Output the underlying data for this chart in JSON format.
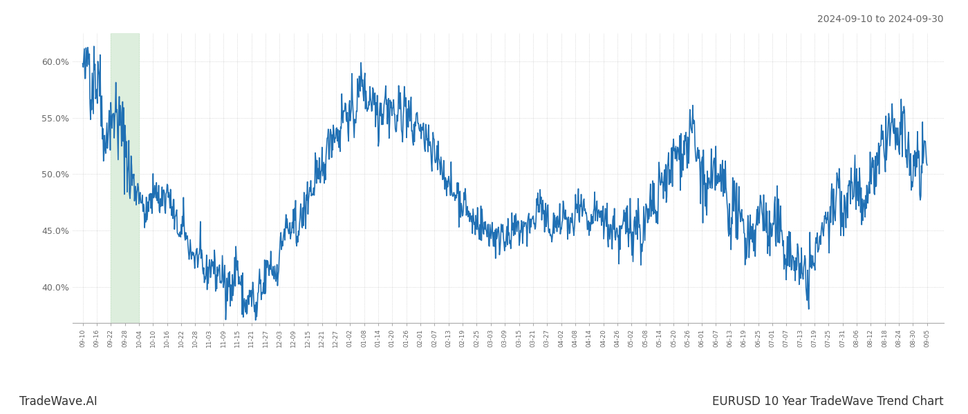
{
  "title_top_right": "2024-09-10 to 2024-09-30",
  "title_bottom_right": "EURUSD 10 Year TradeWave Trend Chart",
  "title_bottom_left": "TradeWave.AI",
  "line_color": "#2070b4",
  "line_width": 1.2,
  "background_color": "#ffffff",
  "grid_color": "#cccccc",
  "highlight_color_fill": "#ddeedd",
  "highlight_color_edge": "#bbddbb",
  "ylim": [
    0.368,
    0.625
  ],
  "yticks": [
    0.4,
    0.45,
    0.5,
    0.55,
    0.6
  ],
  "x_labels": [
    "09-10",
    "09-16",
    "09-22",
    "09-28",
    "10-04",
    "10-10",
    "10-16",
    "10-22",
    "10-28",
    "11-03",
    "11-09",
    "11-15",
    "11-21",
    "11-27",
    "12-03",
    "12-09",
    "12-15",
    "12-21",
    "12-27",
    "01-02",
    "01-08",
    "01-14",
    "01-20",
    "01-26",
    "02-01",
    "02-07",
    "02-13",
    "02-19",
    "02-25",
    "03-03",
    "03-09",
    "03-15",
    "03-21",
    "03-27",
    "04-02",
    "04-08",
    "04-14",
    "04-20",
    "04-26",
    "05-02",
    "05-08",
    "05-14",
    "05-20",
    "05-26",
    "06-01",
    "06-07",
    "06-13",
    "06-19",
    "06-25",
    "07-01",
    "07-07",
    "07-13",
    "07-19",
    "07-25",
    "07-31",
    "08-06",
    "08-12",
    "08-18",
    "08-24",
    "08-30",
    "09-05"
  ],
  "highlight_label_start": "09-22",
  "highlight_label_end": "10-04",
  "keypoints": [
    [
      0,
      0.59
    ],
    [
      1,
      0.595
    ],
    [
      2,
      0.6
    ],
    [
      3,
      0.582
    ],
    [
      4,
      0.572
    ],
    [
      5,
      0.568
    ],
    [
      6,
      0.555
    ],
    [
      7,
      0.55
    ],
    [
      8,
      0.55
    ],
    [
      9,
      0.545
    ],
    [
      10,
      0.558
    ],
    [
      11,
      0.55
    ],
    [
      12,
      0.545
    ],
    [
      13,
      0.542
    ],
    [
      14,
      0.5
    ],
    [
      15,
      0.498
    ],
    [
      16,
      0.5
    ],
    [
      17,
      0.487
    ],
    [
      18,
      0.472
    ],
    [
      19,
      0.462
    ],
    [
      20,
      0.468
    ],
    [
      21,
      0.475
    ],
    [
      22,
      0.48
    ],
    [
      23,
      0.47
    ],
    [
      24,
      0.478
    ],
    [
      25,
      0.472
    ],
    [
      26,
      0.465
    ],
    [
      27,
      0.458
    ],
    [
      28,
      0.455
    ],
    [
      29,
      0.448
    ],
    [
      30,
      0.445
    ],
    [
      31,
      0.44
    ],
    [
      32,
      0.432
    ],
    [
      33,
      0.428
    ],
    [
      34,
      0.42
    ],
    [
      35,
      0.415
    ],
    [
      36,
      0.412
    ],
    [
      37,
      0.408
    ],
    [
      38,
      0.415
    ],
    [
      39,
      0.41
    ],
    [
      40,
      0.415
    ],
    [
      41,
      0.408
    ],
    [
      42,
      0.4
    ],
    [
      43,
      0.395
    ],
    [
      44,
      0.392
    ],
    [
      45,
      0.395
    ],
    [
      46,
      0.415
    ],
    [
      47,
      0.412
    ],
    [
      48,
      0.4
    ],
    [
      49,
      0.392
    ],
    [
      50,
      0.395
    ],
    [
      51,
      0.39
    ],
    [
      52,
      0.392
    ],
    [
      53,
      0.4
    ],
    [
      54,
      0.412
    ],
    [
      55,
      0.42
    ],
    [
      56,
      0.415
    ],
    [
      57,
      0.415
    ],
    [
      58,
      0.425
    ],
    [
      59,
      0.432
    ],
    [
      60,
      0.44
    ],
    [
      61,
      0.445
    ],
    [
      62,
      0.448
    ],
    [
      63,
      0.45
    ],
    [
      64,
      0.452
    ],
    [
      65,
      0.46
    ],
    [
      66,
      0.468
    ],
    [
      67,
      0.475
    ],
    [
      68,
      0.48
    ],
    [
      69,
      0.49
    ],
    [
      70,
      0.498
    ],
    [
      71,
      0.505
    ],
    [
      72,
      0.515
    ],
    [
      73,
      0.52
    ],
    [
      74,
      0.528
    ],
    [
      75,
      0.532
    ],
    [
      76,
      0.535
    ],
    [
      77,
      0.54
    ],
    [
      78,
      0.545
    ],
    [
      79,
      0.548
    ],
    [
      80,
      0.55
    ],
    [
      81,
      0.555
    ],
    [
      82,
      0.56
    ],
    [
      83,
      0.568
    ],
    [
      84,
      0.572
    ],
    [
      85,
      0.575
    ],
    [
      86,
      0.577
    ],
    [
      87,
      0.58
    ],
    [
      88,
      0.565
    ],
    [
      89,
      0.558
    ],
    [
      90,
      0.553
    ],
    [
      91,
      0.558
    ],
    [
      92,
      0.562
    ],
    [
      93,
      0.555
    ],
    [
      94,
      0.556
    ],
    [
      95,
      0.56
    ],
    [
      96,
      0.555
    ],
    [
      97,
      0.545
    ],
    [
      98,
      0.548
    ],
    [
      99,
      0.552
    ],
    [
      100,
      0.548
    ],
    [
      101,
      0.54
    ],
    [
      102,
      0.535
    ],
    [
      103,
      0.53
    ],
    [
      104,
      0.525
    ],
    [
      105,
      0.518
    ],
    [
      106,
      0.51
    ],
    [
      107,
      0.505
    ],
    [
      108,
      0.5
    ],
    [
      109,
      0.495
    ],
    [
      110,
      0.49
    ],
    [
      111,
      0.485
    ],
    [
      112,
      0.48
    ],
    [
      113,
      0.475
    ],
    [
      114,
      0.47
    ],
    [
      115,
      0.465
    ],
    [
      116,
      0.462
    ],
    [
      117,
      0.458
    ],
    [
      118,
      0.455
    ],
    [
      119,
      0.452
    ],
    [
      120,
      0.45
    ],
    [
      121,
      0.448
    ],
    [
      122,
      0.445
    ],
    [
      123,
      0.445
    ],
    [
      124,
      0.445
    ],
    [
      125,
      0.447
    ],
    [
      126,
      0.447
    ],
    [
      127,
      0.445
    ],
    [
      128,
      0.448
    ],
    [
      129,
      0.452
    ],
    [
      130,
      0.456
    ],
    [
      131,
      0.46
    ],
    [
      132,
      0.456
    ],
    [
      133,
      0.452
    ],
    [
      134,
      0.45
    ],
    [
      135,
      0.455
    ],
    [
      136,
      0.458
    ],
    [
      137,
      0.455
    ],
    [
      138,
      0.45
    ],
    [
      139,
      0.448
    ],
    [
      140,
      0.448
    ],
    [
      141,
      0.452
    ],
    [
      142,
      0.455
    ],
    [
      143,
      0.46
    ],
    [
      144,
      0.462
    ],
    [
      145,
      0.46
    ],
    [
      146,
      0.462
    ],
    [
      147,
      0.465
    ],
    [
      148,
      0.468
    ],
    [
      149,
      0.472
    ],
    [
      150,
      0.47
    ],
    [
      151,
      0.468
    ],
    [
      152,
      0.465
    ],
    [
      153,
      0.462
    ],
    [
      154,
      0.46
    ],
    [
      155,
      0.458
    ],
    [
      156,
      0.455
    ],
    [
      157,
      0.452
    ],
    [
      158,
      0.45
    ],
    [
      159,
      0.452
    ],
    [
      160,
      0.45
    ],
    [
      161,
      0.448
    ],
    [
      162,
      0.447
    ],
    [
      163,
      0.445
    ],
    [
      164,
      0.445
    ],
    [
      165,
      0.445
    ],
    [
      166,
      0.448
    ],
    [
      167,
      0.45
    ],
    [
      168,
      0.453
    ],
    [
      169,
      0.46
    ],
    [
      170,
      0.465
    ],
    [
      171,
      0.47
    ],
    [
      172,
      0.475
    ],
    [
      173,
      0.48
    ],
    [
      174,
      0.49
    ],
    [
      175,
      0.5
    ],
    [
      176,
      0.51
    ],
    [
      177,
      0.518
    ],
    [
      178,
      0.525
    ],
    [
      179,
      0.53
    ],
    [
      180,
      0.535
    ],
    [
      181,
      0.528
    ],
    [
      182,
      0.52
    ],
    [
      183,
      0.515
    ],
    [
      184,
      0.51
    ],
    [
      185,
      0.505
    ],
    [
      186,
      0.5
    ],
    [
      187,
      0.495
    ],
    [
      188,
      0.49
    ],
    [
      189,
      0.485
    ],
    [
      190,
      0.48
    ],
    [
      191,
      0.475
    ],
    [
      192,
      0.472
    ],
    [
      193,
      0.47
    ],
    [
      194,
      0.468
    ],
    [
      195,
      0.465
    ],
    [
      196,
      0.462
    ],
    [
      197,
      0.46
    ],
    [
      198,
      0.458
    ],
    [
      199,
      0.455
    ],
    [
      200,
      0.452
    ],
    [
      201,
      0.45
    ],
    [
      202,
      0.448
    ],
    [
      203,
      0.445
    ],
    [
      204,
      0.442
    ],
    [
      205,
      0.44
    ],
    [
      206,
      0.438
    ],
    [
      207,
      0.435
    ],
    [
      208,
      0.432
    ],
    [
      209,
      0.43
    ],
    [
      210,
      0.428
    ],
    [
      211,
      0.426
    ],
    [
      212,
      0.424
    ],
    [
      213,
      0.422
    ],
    [
      214,
      0.42
    ],
    [
      215,
      0.422
    ],
    [
      216,
      0.425
    ],
    [
      217,
      0.43
    ],
    [
      218,
      0.435
    ],
    [
      219,
      0.44
    ],
    [
      220,
      0.445
    ],
    [
      221,
      0.45
    ],
    [
      222,
      0.455
    ],
    [
      223,
      0.46
    ],
    [
      224,
      0.465
    ],
    [
      225,
      0.47
    ],
    [
      226,
      0.475
    ],
    [
      227,
      0.48
    ],
    [
      228,
      0.485
    ],
    [
      229,
      0.49
    ],
    [
      230,
      0.495
    ],
    [
      231,
      0.5
    ],
    [
      232,
      0.498
    ],
    [
      233,
      0.492
    ],
    [
      234,
      0.488
    ],
    [
      235,
      0.492
    ],
    [
      236,
      0.498
    ],
    [
      237,
      0.505
    ],
    [
      238,
      0.51
    ],
    [
      239,
      0.515
    ],
    [
      240,
      0.52
    ],
    [
      241,
      0.525
    ],
    [
      242,
      0.53
    ],
    [
      243,
      0.535
    ],
    [
      244,
      0.54
    ],
    [
      245,
      0.535
    ],
    [
      246,
      0.525
    ],
    [
      247,
      0.515
    ],
    [
      248,
      0.51
    ],
    [
      249,
      0.505
    ],
    [
      250,
      0.502
    ],
    [
      251,
      0.5
    ],
    [
      252,
      0.502
    ]
  ]
}
